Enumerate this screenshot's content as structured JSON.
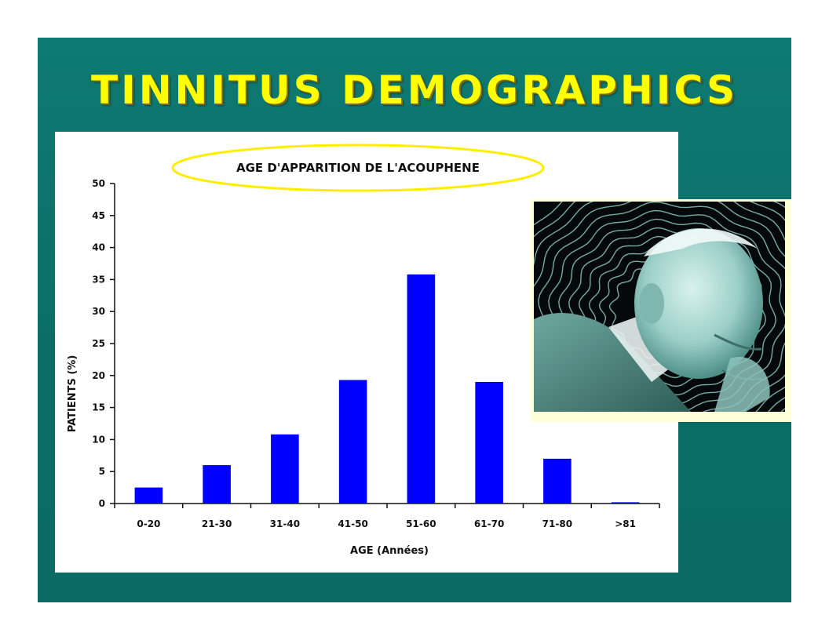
{
  "slide": {
    "title": "TINNITUS  DEMOGRAPHICS",
    "background_color": "#0b6f68",
    "title_color": "#ffff00"
  },
  "chart_data": {
    "type": "bar",
    "title": "AGE D'APPARITION DE L'ACOUPHENE",
    "xlabel": "AGE (Années)",
    "ylabel": "PATIENTS (%)",
    "categories": [
      "0-20",
      "21-30",
      "31-40",
      "41-50",
      "51-60",
      "61-70",
      "71-80",
      ">81"
    ],
    "values": [
      2.5,
      6,
      10.8,
      19.3,
      35.8,
      19,
      7,
      0.2
    ],
    "ylim": [
      0,
      50
    ],
    "yticks": [
      0,
      5,
      10,
      15,
      20,
      25,
      30,
      35,
      40,
      45,
      50
    ],
    "ytick_labels": [
      "0",
      "5",
      "10",
      "15",
      "20",
      "25",
      "30",
      "35",
      "40",
      "45",
      "50"
    ],
    "bar_color": "#0000ff",
    "title_outline_color": "#ffee00",
    "grid": false,
    "legend": "none"
  },
  "photo": {
    "icon": "elderly-man-tinnitus-photo-icon",
    "wave_color": "#9fe0d8"
  }
}
